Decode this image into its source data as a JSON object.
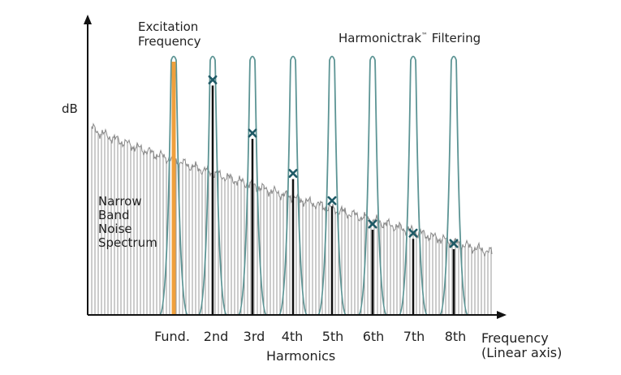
{
  "labels": {
    "y_axis": "dB",
    "x_axis_line1": "Frequency",
    "x_axis_line2": "(Linear axis)",
    "excitation_line1": "Excitation",
    "excitation_line2": "Frequency",
    "filtering_name": "Harmonictrak",
    "filtering_tm": "™",
    "filtering_suffix": " Filtering",
    "noise_line1": "Narrow",
    "noise_line2": "Band",
    "noise_line3": "Noise",
    "noise_line4": "Spectrum",
    "harmonics_group": "Harmonics"
  },
  "ticks": [
    "Fund.",
    "2nd",
    "3rd",
    "4th",
    "5th",
    "6th",
    "7th",
    "8th"
  ],
  "harmonic_levels": [
    1.0,
    0.905,
    0.7,
    0.545,
    0.44,
    0.35,
    0.315,
    0.275
  ],
  "noise_level_start": 0.72,
  "noise_level_end": 0.24,
  "colors": {
    "filter": "#5c9494",
    "marker": "#1f5a66",
    "fundamental": "#f0a03c",
    "axis": "#111111",
    "noise": "#9a9a9a"
  }
}
